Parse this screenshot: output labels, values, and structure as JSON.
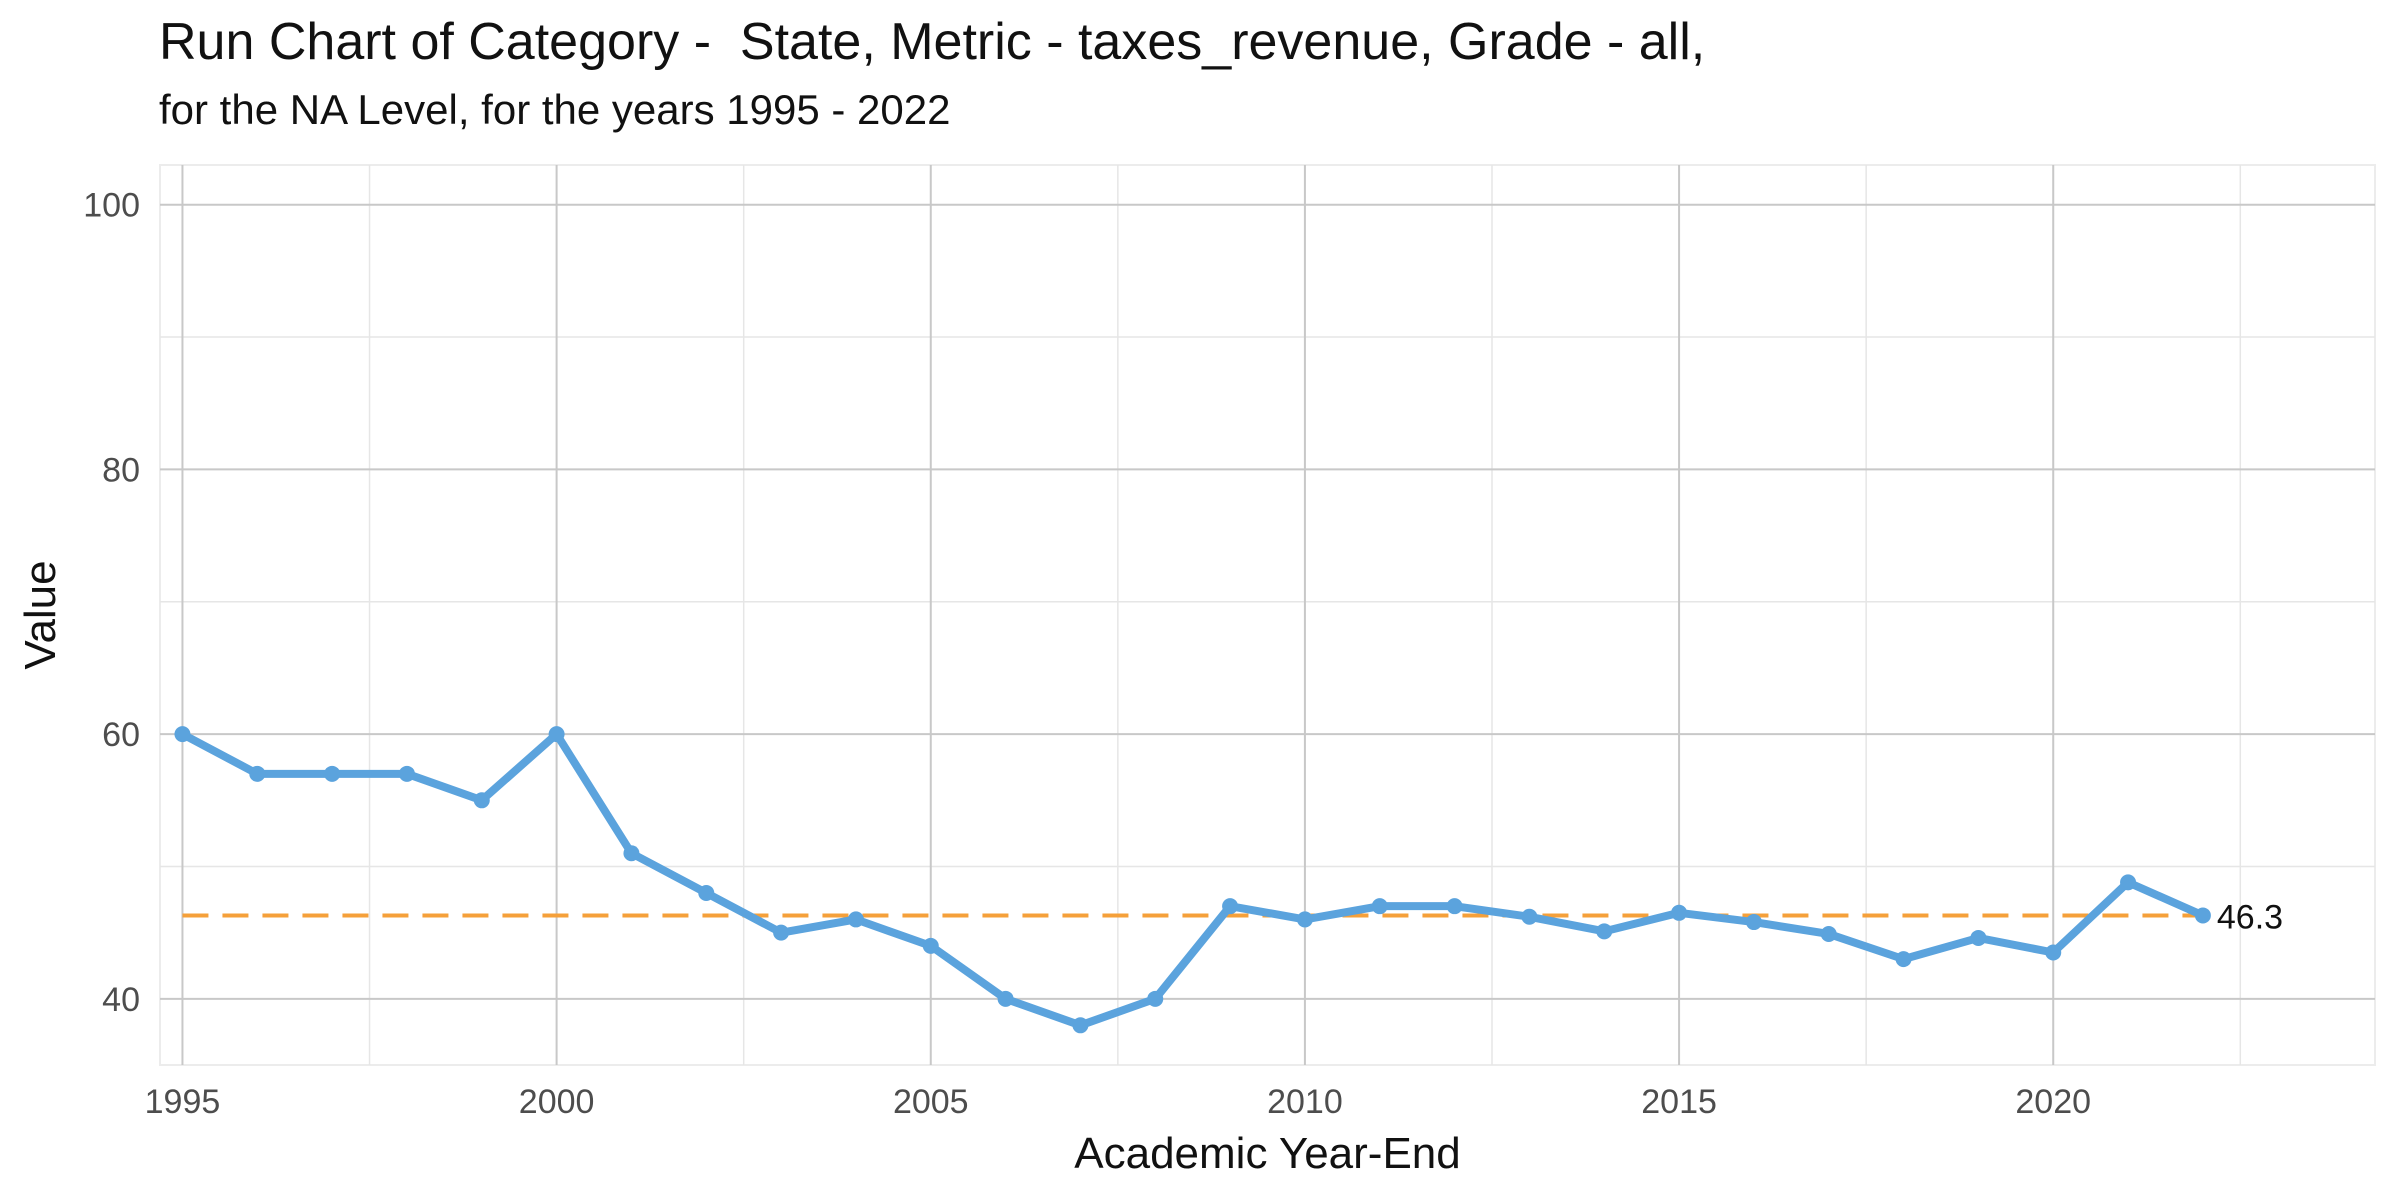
{
  "title": "Run Chart of Category -  State, Metric - taxes_revenue, Grade - all,",
  "subtitle": "for the NA Level, for the years 1995 - 2022",
  "chart_data": {
    "type": "line",
    "xlabel": "Academic Year-End",
    "ylabel": "Value",
    "xlim": [
      1994.7,
      2024.3
    ],
    "ylim": [
      35,
      103
    ],
    "x_ticks": [
      1995,
      2000,
      2005,
      2010,
      2015,
      2020
    ],
    "y_ticks": [
      40,
      60,
      80,
      100
    ],
    "grid": true,
    "series": [
      {
        "x": [
          1995,
          1996,
          1997,
          1998,
          1999,
          2000,
          2001,
          2002,
          2003,
          2004,
          2005,
          2006,
          2007,
          2008,
          2009,
          2010,
          2011,
          2012,
          2013,
          2014,
          2015,
          2016,
          2017,
          2018,
          2019,
          2020,
          2021,
          2022
        ],
        "y": [
          60,
          57,
          57,
          57,
          55,
          60,
          51,
          48,
          45,
          46,
          44,
          40,
          38,
          40,
          47,
          46,
          47,
          47,
          46.2,
          45.1,
          46.5,
          45.8,
          44.9,
          43,
          44.6,
          43.5,
          48.8,
          46.3
        ],
        "color": "#5ba3dd"
      }
    ],
    "reference_line": {
      "y": 46.3,
      "label": "46.3",
      "color": "#f5a03a",
      "style": "dashed"
    }
  }
}
